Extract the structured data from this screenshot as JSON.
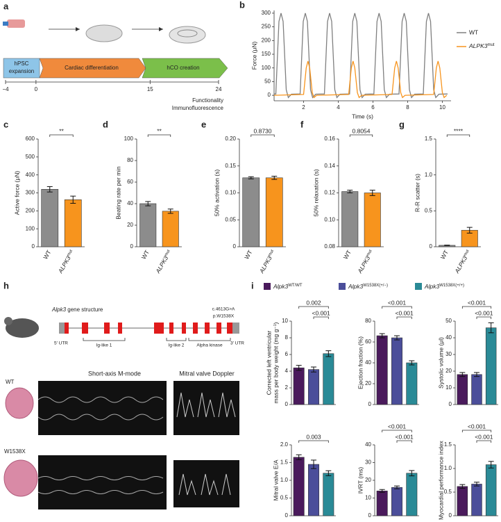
{
  "panel_labels": [
    "a",
    "b",
    "c",
    "d",
    "e",
    "f",
    "g",
    "h",
    "i"
  ],
  "panel_a": {
    "steps": [
      [
        "hPSC",
        "expansion"
      ],
      [
        "Cardiac differentiation"
      ],
      [
        "hCO creation"
      ]
    ],
    "timeline": [
      {
        "value": -4,
        "label": "−4"
      },
      0,
      15,
      24
    ],
    "outputs": [
      "Functionality",
      "Immunofluorescence"
    ]
  },
  "chart_data": [
    {
      "type": "line",
      "xlabel": "Time (s)",
      "ylabel": "Force (μN)",
      "xlim": [
        0.3,
        10.5
      ],
      "xticks": [
        2,
        4,
        6,
        8,
        10
      ],
      "ylim": [
        -20,
        310
      ],
      "yticks": [
        0,
        50,
        100,
        150,
        200,
        250,
        300
      ],
      "series": [
        {
          "name": "WT",
          "color": "#7f7f7f",
          "x": [
            0.3,
            0.4,
            0.58,
            0.7,
            0.82,
            1.0,
            1.12,
            1.3,
            1.8,
            1.98,
            2.1,
            2.22,
            2.4,
            2.52,
            2.7,
            3.2,
            3.38,
            3.5,
            3.62,
            3.8,
            3.92,
            4.1,
            4.65,
            4.83,
            4.95,
            5.07,
            5.25,
            5.37,
            5.55,
            6.05,
            6.23,
            6.35,
            6.47,
            6.65,
            6.77,
            6.95,
            7.5,
            7.68,
            7.8,
            7.92,
            8.1,
            8.22,
            8.4,
            8.9,
            9.08,
            9.2,
            9.32,
            9.5,
            9.62,
            9.8,
            10.3
          ],
          "values": [
            5,
            5,
            270,
            300,
            270,
            20,
            -8,
            4,
            5,
            270,
            300,
            270,
            20,
            -8,
            4,
            5,
            270,
            300,
            270,
            20,
            -8,
            4,
            5,
            270,
            300,
            270,
            20,
            -8,
            4,
            5,
            270,
            300,
            270,
            20,
            -8,
            4,
            5,
            270,
            300,
            270,
            20,
            -8,
            4,
            5,
            270,
            300,
            270,
            20,
            -8,
            4,
            5
          ]
        },
        {
          "name": {
            "text": "ALPK3",
            "sup": "mut"
          },
          "color": "#f7941d",
          "x": [
            0.3,
            2.0,
            2.15,
            2.25,
            2.35,
            2.5,
            2.6,
            2.75,
            4.6,
            4.75,
            4.85,
            4.95,
            5.1,
            5.2,
            5.35,
            7.1,
            7.25,
            7.35,
            7.45,
            7.6,
            7.7,
            7.85,
            9.5,
            9.65,
            9.75,
            9.85,
            10.0,
            10.1,
            10.25
          ],
          "values": [
            0,
            3,
            100,
            125,
            100,
            10,
            -8,
            0,
            3,
            100,
            125,
            100,
            10,
            -8,
            0,
            3,
            100,
            125,
            100,
            10,
            -8,
            0,
            3,
            100,
            125,
            100,
            10,
            -8,
            0
          ]
        }
      ]
    },
    {
      "type": "bar",
      "ylabel": "Active force (μN)",
      "categories": [
        "WT",
        {
          "text": "ALPK3",
          "sup": "mut"
        }
      ],
      "values": [
        320,
        262
      ],
      "errors": [
        15,
        20
      ],
      "colors": [
        "#8c8c8c",
        "#f7941d"
      ],
      "ylim": [
        0,
        600
      ],
      "yticks": [
        0,
        100,
        200,
        300,
        400,
        500,
        600
      ],
      "annotations": [
        {
          "text": "**",
          "from": 0,
          "to": 1
        }
      ]
    },
    {
      "type": "bar",
      "ylabel": "Beating rate per min",
      "categories": [
        "WT",
        {
          "text": "ALPK3",
          "sup": "mut"
        }
      ],
      "values": [
        40,
        33
      ],
      "errors": [
        2,
        2
      ],
      "colors": [
        "#8c8c8c",
        "#f7941d"
      ],
      "ylim": [
        0,
        100
      ],
      "yticks": [
        0,
        20,
        40,
        60,
        80,
        100
      ],
      "annotations": [
        {
          "text": "**",
          "from": 0,
          "to": 1
        }
      ]
    },
    {
      "type": "bar",
      "ylabel": "50% activation (s)",
      "categories": [
        "WT",
        {
          "text": "ALPK3",
          "sup": "mut"
        }
      ],
      "values": [
        0.128,
        0.128
      ],
      "errors": [
        0.002,
        0.003
      ],
      "colors": [
        "#8c8c8c",
        "#f7941d"
      ],
      "ylim": [
        0,
        0.2
      ],
      "yticks": [
        0,
        0.05,
        {
          "value": 0.1,
          "label": "0.10"
        },
        0.15,
        {
          "value": 0.2,
          "label": "0.20"
        }
      ],
      "annotations": [
        {
          "text": "0.8730",
          "from": 0,
          "to": 1
        }
      ]
    },
    {
      "type": "bar",
      "ylabel": "50% relaxation (s)",
      "categories": [
        "WT",
        {
          "text": "ALPK3",
          "sup": "mut"
        }
      ],
      "values": [
        0.121,
        0.12
      ],
      "errors": [
        0.001,
        0.002
      ],
      "colors": [
        "#8c8c8c",
        "#f7941d"
      ],
      "ylim": [
        0.08,
        0.16
      ],
      "yticks": [
        0.08,
        {
          "value": 0.1,
          "label": "0.10"
        },
        0.12,
        0.14,
        0.16
      ],
      "annotations": [
        {
          "text": "0.8054",
          "from": 0,
          "to": 1
        }
      ]
    },
    {
      "type": "bar",
      "ylabel": "R-R scatter (s)",
      "categories": [
        "WT",
        {
          "text": "ALPK3",
          "sup": "mut"
        }
      ],
      "values": [
        0.02,
        0.23
      ],
      "errors": [
        0.003,
        0.04
      ],
      "colors": [
        "#8c8c8c",
        "#f7941d"
      ],
      "ylim": [
        0,
        1.5
      ],
      "yticks": [
        0,
        0.5,
        {
          "value": 1,
          "label": "1.0"
        },
        1.5
      ],
      "annotations": [
        {
          "text": "****",
          "from": 0,
          "to": 1
        }
      ]
    }
  ],
  "panel_h": {
    "gene": {
      "text": "Alpk3",
      "rest": " gene structure"
    },
    "mutation": [
      "c.4613G>A",
      "p.W1538X"
    ],
    "domains": [
      "5′ UTR",
      "Ig-like 1",
      "Ig-like 2",
      "Alpha kinase",
      "3′ UTR"
    ],
    "echo_titles": [
      "Short-axis M-mode",
      "Mitral valve Doppler"
    ],
    "rows": [
      "WT",
      "W1538X"
    ]
  },
  "panel_i": {
    "legend": [
      {
        "text": "Alpk3",
        "sup": "WT/WT",
        "color": "#4a1a5c"
      },
      {
        "text": "Alpk3",
        "sup": "W1538X(+/−)",
        "color": "#4b4e9a"
      },
      {
        "text": "Alpk3",
        "sup": "W1538X(+/+)",
        "color": "#2a8a96"
      }
    ],
    "charts": [
      {
        "type": "bar",
        "ylabel": [
          "Corrected left ventricular",
          "mass per body weight (mg g⁻¹)"
        ],
        "values": [
          4.4,
          4.2,
          6.1
        ],
        "errors": [
          0.3,
          0.3,
          0.35
        ],
        "ylim": [
          0,
          10
        ],
        "yticks": [
          0,
          2,
          4,
          6,
          8,
          10
        ],
        "annotations": [
          {
            "text": "0.002",
            "from": 0,
            "to": 2
          },
          {
            "text": "<0.001",
            "from": 1,
            "to": 2
          }
        ]
      },
      {
        "type": "bar",
        "ylabel": [
          "Ejection fraction (%)"
        ],
        "values": [
          66,
          64,
          40
        ],
        "errors": [
          2,
          2,
          2
        ],
        "ylim": [
          0,
          80
        ],
        "yticks": [
          0,
          20,
          40,
          60,
          80
        ],
        "annotations": [
          {
            "text": "<0.001",
            "from": 0,
            "to": 2
          },
          {
            "text": "<0.001",
            "from": 1,
            "to": 2
          }
        ]
      },
      {
        "type": "bar",
        "ylabel": [
          "Systolic volume (μl)"
        ],
        "values": [
          18,
          18,
          46
        ],
        "errors": [
          1.2,
          1.2,
          3
        ],
        "ylim": [
          0,
          50
        ],
        "yticks": [
          0,
          10,
          20,
          30,
          40,
          50
        ],
        "annotations": [
          {
            "text": "<0.001",
            "from": 0,
            "to": 2
          },
          {
            "text": "<0.001",
            "from": 1,
            "to": 2
          }
        ]
      },
      {
        "type": "bar",
        "ylabel": [
          "Mitral valve E/A"
        ],
        "values": [
          1.65,
          1.45,
          1.2
        ],
        "errors": [
          0.07,
          0.12,
          0.07
        ],
        "ylim": [
          0,
          2
        ],
        "yticks": [
          0,
          0.5,
          {
            "value": 1,
            "label": "1.0"
          },
          1.5,
          {
            "value": 2,
            "label": "2.0"
          }
        ],
        "annotations": [
          {
            "text": "0.003",
            "from": 0,
            "to": 2
          }
        ]
      },
      {
        "type": "bar",
        "ylabel": [
          "IVRT (ms)"
        ],
        "values": [
          14,
          16,
          24
        ],
        "errors": [
          0.8,
          0.8,
          1.5
        ],
        "ylim": [
          0,
          40
        ],
        "yticks": [
          0,
          10,
          20,
          30,
          40
        ],
        "annotations": [
          {
            "text": "<0.001",
            "from": 0,
            "to": 2
          },
          {
            "text": "<0.001",
            "from": 1,
            "to": 2
          }
        ]
      },
      {
        "type": "bar",
        "ylabel": [
          "Myocardial performance index"
        ],
        "values": [
          0.62,
          0.67,
          1.08
        ],
        "errors": [
          0.04,
          0.04,
          0.07
        ],
        "ylim": [
          0,
          1.5
        ],
        "yticks": [
          0,
          0.5,
          {
            "value": 1,
            "label": "1.0"
          },
          1.5
        ],
        "annotations": [
          {
            "text": "<0.001",
            "from": 0,
            "to": 2
          },
          {
            "text": "<0.001",
            "from": 1,
            "to": 2
          }
        ]
      }
    ]
  }
}
